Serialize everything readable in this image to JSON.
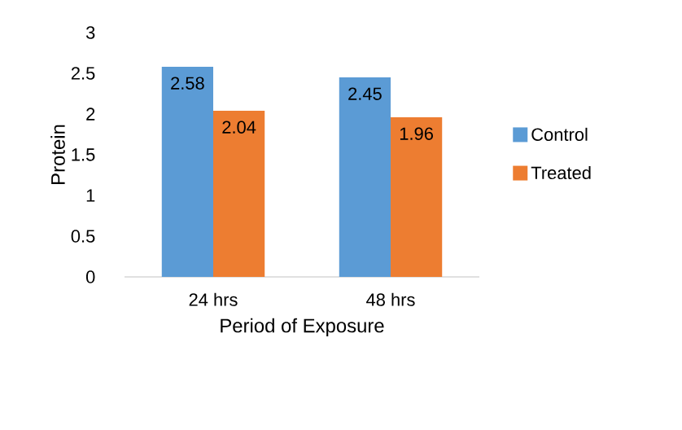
{
  "chart_data": {
    "type": "bar",
    "xlabel": "Period of Exposure",
    "ylabel": "Protein",
    "categories": [
      "24 hrs",
      "48 hrs"
    ],
    "series": [
      {
        "name": "Control",
        "color": "#5b9bd5",
        "values": [
          2.58,
          2.45
        ]
      },
      {
        "name": "Treated",
        "color": "#ed7d31",
        "values": [
          2.04,
          1.96
        ]
      }
    ],
    "ylim": [
      0,
      3
    ],
    "yticks": [
      0,
      0.5,
      1,
      1.5,
      2,
      2.5,
      3
    ],
    "data_labels": true,
    "legend": "right"
  }
}
